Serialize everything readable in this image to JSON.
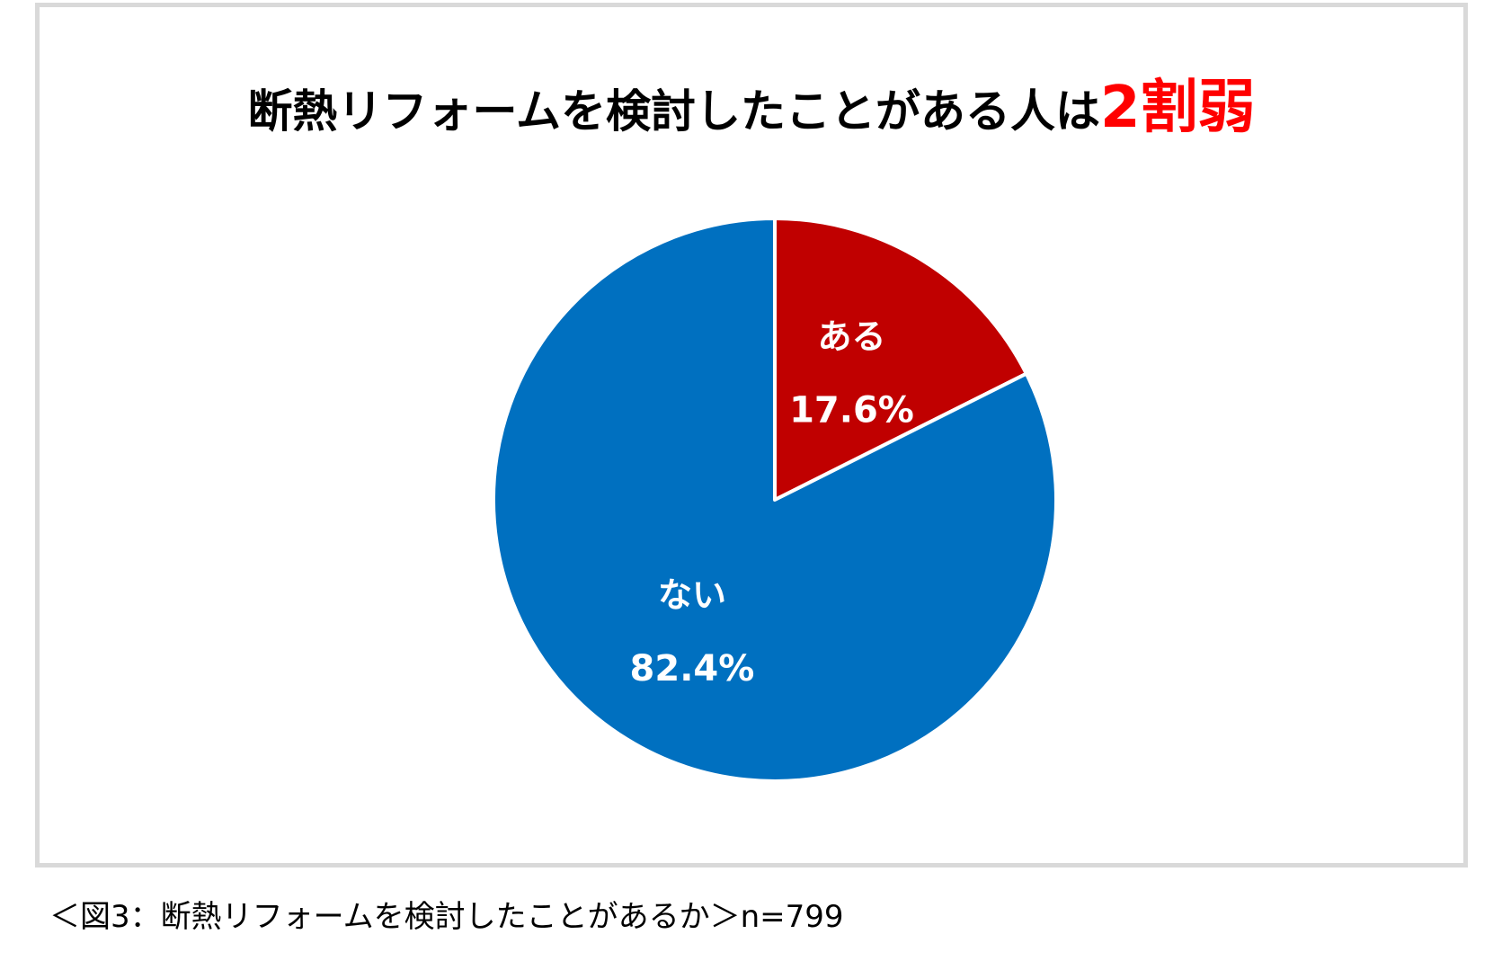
{
  "chart_data": {
    "type": "pie",
    "title": "断熱リフォームを検討したことがある人は",
    "title_emphasis": "2割弱",
    "slices": [
      {
        "label": "ある",
        "value": 17.6,
        "value_label": "17.6%",
        "color": "#c00000"
      },
      {
        "label": "ない",
        "value": 82.4,
        "value_label": "82.4%",
        "color": "#0070c0"
      }
    ],
    "start_angle": "12 o'clock",
    "direction": "clockwise",
    "slice_border_color": "#ffffff"
  },
  "caption": "＜図3：断熱リフォームを検討したことがあるか＞n=799",
  "colors": {
    "title_emphasis": "#ff0000",
    "frame_border": "#d9d9d9"
  }
}
